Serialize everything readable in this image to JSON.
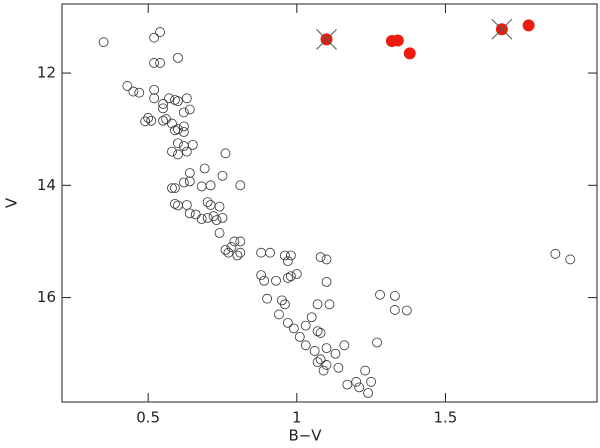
{
  "chart_data": {
    "type": "scatter",
    "xlabel": "B−V",
    "ylabel": "V",
    "xlim": [
      0.21,
      2.01
    ],
    "ylim": [
      17.86,
      10.77
    ],
    "xticks": [
      0.5,
      1,
      {
        "value": 1.5,
        "label": "1.5"
      }
    ],
    "yticks": [
      12,
      14,
      16
    ],
    "series": [
      {
        "color": "#333333",
        "filled": false,
        "x": [
          0.54,
          0.52,
          0.35,
          0.52,
          0.54,
          0.6,
          0.43,
          0.45,
          0.47,
          0.52,
          0.52,
          0.55,
          0.57,
          0.59,
          0.6,
          0.63,
          0.64,
          0.62,
          0.55,
          0.5,
          0.49,
          0.51,
          0.55,
          0.56,
          0.58,
          0.6,
          0.59,
          0.62,
          0.62,
          0.6,
          0.62,
          0.65,
          0.58,
          0.6,
          0.63,
          0.76,
          0.69,
          0.64,
          0.64,
          0.62,
          0.58,
          0.59,
          0.71,
          0.75,
          0.81,
          0.68,
          0.59,
          0.6,
          0.63,
          0.64,
          0.66,
          0.7,
          0.71,
          0.74,
          0.68,
          0.7,
          0.72,
          0.73,
          0.75,
          0.74,
          0.79,
          0.81,
          0.76,
          0.77,
          0.8,
          0.81,
          0.78,
          0.88,
          0.91,
          0.96,
          0.98,
          0.97,
          1.08,
          1.1,
          0.88,
          0.89,
          0.93,
          0.97,
          0.98,
          1.0,
          1.1,
          0.9,
          0.95,
          0.96,
          1.07,
          1.11,
          0.94,
          0.97,
          0.99,
          1.03,
          1.05,
          1.01,
          1.03,
          1.07,
          1.08,
          1.06,
          1.1,
          1.13,
          1.08,
          1.07,
          1.1,
          1.09,
          1.14,
          1.16,
          1.17,
          1.2,
          1.23,
          1.21,
          1.24,
          1.25,
          1.27,
          1.28,
          1.33,
          1.33,
          1.37,
          1.87,
          1.92
        ],
        "values": [
          11.27,
          11.37,
          11.45,
          11.82,
          11.82,
          11.73,
          12.23,
          12.33,
          12.35,
          12.3,
          12.45,
          12.55,
          12.45,
          12.48,
          12.5,
          12.45,
          12.65,
          12.7,
          12.63,
          12.8,
          12.86,
          12.85,
          12.85,
          12.82,
          12.9,
          13.0,
          13.02,
          12.95,
          13.05,
          13.25,
          13.3,
          13.28,
          13.4,
          13.45,
          13.4,
          13.43,
          13.7,
          13.78,
          13.93,
          13.95,
          14.05,
          14.05,
          14.0,
          13.83,
          14.0,
          14.02,
          14.33,
          14.36,
          14.35,
          14.5,
          14.52,
          14.3,
          14.35,
          14.38,
          14.6,
          14.58,
          14.55,
          14.62,
          14.58,
          14.85,
          15.0,
          15.0,
          15.15,
          15.2,
          15.25,
          15.2,
          15.1,
          15.2,
          15.2,
          15.25,
          15.25,
          15.35,
          15.28,
          15.32,
          15.6,
          15.7,
          15.7,
          15.65,
          15.62,
          15.58,
          15.72,
          16.02,
          16.05,
          16.12,
          16.12,
          16.12,
          16.3,
          16.45,
          16.55,
          16.5,
          16.35,
          16.7,
          16.85,
          16.6,
          16.63,
          16.95,
          16.9,
          17.0,
          17.1,
          17.15,
          17.2,
          17.3,
          17.25,
          16.85,
          17.55,
          17.5,
          17.3,
          17.6,
          17.7,
          17.5,
          16.8,
          15.95,
          15.97,
          16.22,
          16.23,
          15.22,
          15.32
        ]
      },
      {
        "color": "#ee1c0e",
        "filled": true,
        "x": [
          1.1,
          1.32,
          1.34,
          1.38,
          1.69,
          1.78
        ],
        "values": [
          11.4,
          11.43,
          11.42,
          11.65,
          11.22,
          11.15
        ],
        "crossed": [
          true,
          false,
          false,
          false,
          true,
          false
        ]
      }
    ]
  }
}
